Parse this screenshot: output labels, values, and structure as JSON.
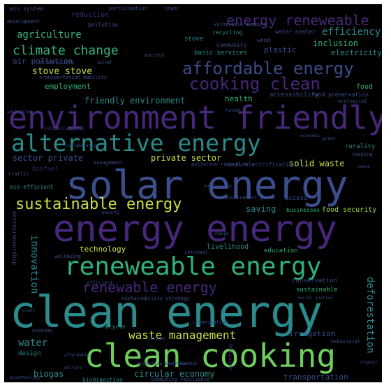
{
  "palette": {
    "purple": "#46277a",
    "indigo": "#3b4e8c",
    "teal": "#2a8a8c",
    "green": "#2fb27a",
    "light_green": "#6fce5b",
    "yellow_green": "#a8db3a",
    "lime": "#c9e047"
  },
  "words": [
    {
      "text": "clean energy",
      "color": "#2a8a8c"
    },
    {
      "text": "solar energy",
      "color": "#3b4e8c"
    },
    {
      "text": "energy energy",
      "color": "#46277a"
    },
    {
      "text": "environment friendly",
      "color": "#46277a"
    },
    {
      "text": "clean cooking",
      "color": "#6fce5b"
    },
    {
      "text": "reneweable energy",
      "color": "#2fb27a"
    },
    {
      "text": "alternative energy",
      "color": "#2a8a8c"
    },
    {
      "text": "affordable energy",
      "color": "#3b4e8c"
    },
    {
      "text": "cooking clean",
      "color": "#46277a"
    },
    {
      "text": "sustainable energy",
      "color": "#c9e047"
    },
    {
      "text": "renewable energy",
      "color": "#46277a"
    },
    {
      "text": "energy reneweable",
      "color": "#46277a"
    },
    {
      "text": "climate change",
      "color": "#2fb27a"
    },
    {
      "text": "waste management",
      "color": "#c9e047"
    },
    {
      "text": "agriculture",
      "color": "#2fb27a"
    },
    {
      "text": "efficiency",
      "color": "#2a8a8c"
    },
    {
      "text": "stove stove",
      "color": "#c9e047"
    },
    {
      "text": "friendly environment",
      "color": "#2a8a8c"
    },
    {
      "text": "private sector",
      "color": "#c9e047"
    },
    {
      "text": "sector private",
      "color": "#3b4e8c"
    },
    {
      "text": "solid waste",
      "color": "#c9e047"
    },
    {
      "text": "circular economy",
      "color": "#2a8a8c"
    },
    {
      "text": "technology",
      "color": "#c9e047"
    },
    {
      "text": "innovation",
      "color": "#2a8a8c"
    },
    {
      "text": "water",
      "color": "#2a8a8c"
    },
    {
      "text": "biogas",
      "color": "#2a8a8c"
    },
    {
      "text": "deforestation",
      "color": "#2a8a8c"
    },
    {
      "text": "employment",
      "color": "#2fb27a"
    },
    {
      "text": "inclusion",
      "color": "#2fb27a"
    },
    {
      "text": "electricity",
      "color": "#2a8a8c"
    },
    {
      "text": "saving",
      "color": "#2a8a8c"
    },
    {
      "text": "food security",
      "color": "#a8db3a"
    },
    {
      "text": "health",
      "color": "#2fb27a"
    },
    {
      "text": "food",
      "color": "#2fb27a"
    },
    {
      "text": "plastic",
      "color": "#3b4e8c"
    },
    {
      "text": "air pollution",
      "color": "#3b4e8c"
    },
    {
      "text": "reduction",
      "color": "#46277a"
    },
    {
      "text": "irrigation",
      "color": "#3b4e8c"
    },
    {
      "text": "transportation",
      "color": "#3b4e8c"
    },
    {
      "text": "conservation",
      "color": "#3b4e8c"
    },
    {
      "text": "livelihood",
      "color": "#2a8a8c"
    },
    {
      "text": "education",
      "color": "#2fb27a"
    },
    {
      "text": "basic services",
      "color": "#2a8a8c"
    },
    {
      "text": "community",
      "color": "#3b4e8c"
    },
    {
      "text": "stove",
      "color": "#2a8a8c"
    },
    {
      "text": "wood",
      "color": "#3b4e8c"
    },
    {
      "text": "recycling",
      "color": "#2a8a8c"
    },
    {
      "text": "water heater",
      "color": "#3b4e8c"
    },
    {
      "text": "pollution",
      "color": "#3b4e8c"
    },
    {
      "text": "eco system",
      "color": "#3b4e8c"
    },
    {
      "text": "food preservation",
      "color": "#3b4e8c"
    },
    {
      "text": "rurality",
      "color": "#2a8a8c"
    },
    {
      "text": "cooking",
      "color": "#3b4e8c"
    },
    {
      "text": "access",
      "color": "#3b4e8c"
    },
    {
      "text": "businesses",
      "color": "#2fb27a"
    },
    {
      "text": "sustainable",
      "color": "#2fb27a"
    },
    {
      "text": "eco efficient",
      "color": "#2a8a8c"
    },
    {
      "text": "rural electrification",
      "color": "#3b4e8c"
    },
    {
      "text": "entrepreneurship",
      "color": "#3b4e8c"
    },
    {
      "text": "biofuel",
      "color": "#46277a"
    },
    {
      "text": "traffic",
      "color": "#3b4e8c"
    },
    {
      "text": "biodigestion",
      "color": "#2a8a8c"
    },
    {
      "text": "recycle",
      "color": "#2a8a8c"
    },
    {
      "text": "design",
      "color": "#2a8a8c"
    },
    {
      "text": "efficient",
      "color": "#3b4e8c"
    },
    {
      "text": "economy",
      "color": "#3b4e8c"
    },
    {
      "text": "society",
      "color": "#3b4e8c"
    },
    {
      "text": "wind",
      "color": "#3b4e8c"
    },
    {
      "text": "employment",
      "color": "#2fb27a"
    },
    {
      "text": "wellbeing",
      "color": "#3b4e8c"
    },
    {
      "text": "emission",
      "color": "#46277a"
    },
    {
      "text": "urbanization",
      "color": "#3b4e8c"
    },
    {
      "text": "sustainability strategy",
      "color": "#3b4e8c"
    },
    {
      "text": "community resilience",
      "color": "#3b4e8c"
    },
    {
      "text": "ecological",
      "color": "#3b4e8c"
    },
    {
      "text": "behavioral",
      "color": "#3b4e8c"
    },
    {
      "text": "management",
      "color": "#3b4e8c"
    },
    {
      "text": "pollution reduction",
      "color": "#3b4e8c"
    },
    {
      "text": "informal",
      "color": "#3b4e8c"
    },
    {
      "text": "involvement youth",
      "color": "#3b4e8c"
    },
    {
      "text": "development",
      "color": "#3b4e8c"
    },
    {
      "text": "participation",
      "color": "#3b4e8c"
    },
    {
      "text": "power",
      "color": "#3b4e8c"
    },
    {
      "text": "vulnerable members",
      "color": "#3b4e8c"
    },
    {
      "text": "transportation mobility",
      "color": "#3b4e8c"
    },
    {
      "text": "alternatives",
      "color": "#3b4e8c"
    },
    {
      "text": "digital",
      "color": "#3b4e8c"
    },
    {
      "text": "partnership",
      "color": "#3b4e8c"
    },
    {
      "text": "change",
      "color": "#3b4e8c"
    },
    {
      "text": "poverty",
      "color": "#3b4e8c"
    },
    {
      "text": "social justice",
      "color": "#3b4e8c"
    },
    {
      "text": "plant",
      "color": "#3b4e8c"
    },
    {
      "text": "protecting environment",
      "color": "#3b4e8c"
    },
    {
      "text": "affordable",
      "color": "#3b4e8c"
    },
    {
      "text": "economic",
      "color": "#3b4e8c"
    },
    {
      "text": "woman",
      "color": "#3b4e8c"
    },
    {
      "text": "green",
      "color": "#3b4e8c"
    },
    {
      "text": "organic",
      "color": "#3b4e8c"
    },
    {
      "text": "welfare",
      "color": "#3b4e8c"
    },
    {
      "text": "bioethnology",
      "color": "#3b4e8c"
    },
    {
      "text": "collaboration",
      "color": "#3b4e8c"
    },
    {
      "text": "reliability",
      "color": "#3b4e8c"
    },
    {
      "text": "forest",
      "color": "#3b4e8c"
    },
    {
      "text": "citizen",
      "color": "#3b4e8c"
    },
    {
      "text": "accessibility",
      "color": "#3b4e8c"
    },
    {
      "text": "environmental",
      "color": "#3b4e8c"
    },
    {
      "text": "adaptation",
      "color": "#3b4e8c"
    }
  ]
}
